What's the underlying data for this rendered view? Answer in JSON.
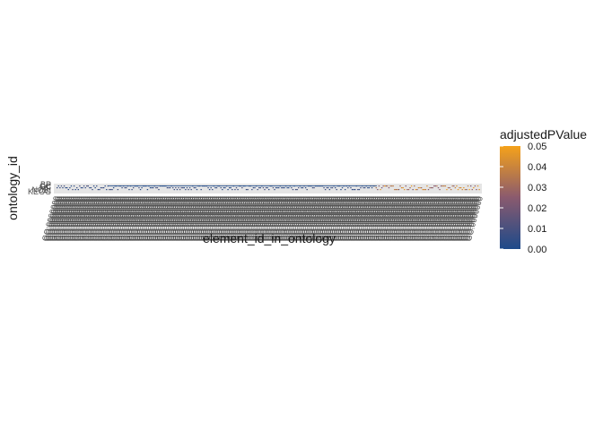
{
  "chart_data": {
    "type": "heatmap",
    "title": "",
    "xlabel": "element_id_in_ontology",
    "ylabel": "ontology_id",
    "y_tick_labels": [
      "BP",
      "CC",
      "MF",
      "NCBI",
      "KEGG"
    ],
    "x_tick_label_text": "GO:0000000",
    "legend": {
      "title": "adjustedPValue",
      "position": "right",
      "ticks": [
        "0.05",
        "0.04",
        "0.03",
        "0.02",
        "0.01",
        "0.00"
      ],
      "range": [
        0,
        0.05
      ],
      "color_low": "#1d4a8a",
      "color_mid": "#8a5a6e",
      "color_high": "#f5a21a"
    },
    "grid": false,
    "background_color": "#e5e5e5"
  }
}
